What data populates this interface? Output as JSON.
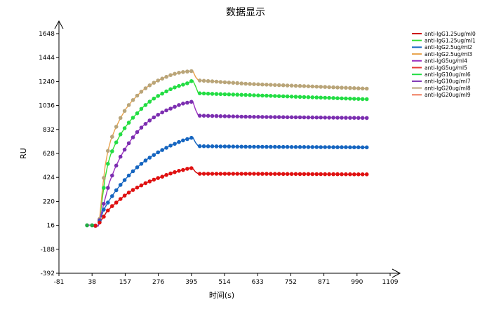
{
  "chart_data": {
    "type": "line",
    "title": "数据显示",
    "xlabel": "时间(s)",
    "ylabel": "RU",
    "xlim": [
      -81,
      1109
    ],
    "ylim": [
      -392,
      1648
    ],
    "x_ticks": [
      -81,
      38,
      157,
      276,
      395,
      514,
      633,
      752,
      871,
      990,
      1109
    ],
    "y_ticks": [
      -392,
      -188,
      16,
      220,
      424,
      628,
      832,
      1036,
      1240,
      1444,
      1648
    ],
    "grid": false,
    "legend_position": "top-right",
    "series": [
      {
        "name": "anti-IgG1.25ug/ml0",
        "color": "#cc0000",
        "markers": false,
        "x": [
          20,
          60,
          65,
          83,
          90,
          110,
          130,
          150,
          170,
          190,
          210,
          230,
          250,
          270,
          290,
          310,
          330,
          350,
          370,
          390,
          400,
          410,
          420,
          600,
          1020
        ],
        "y": [
          20,
          10,
          40,
          100,
          130,
          180,
          220,
          260,
          295,
          325,
          350,
          375,
          395,
          415,
          430,
          450,
          465,
          480,
          490,
          505,
          500,
          470,
          455,
          455,
          450
        ]
      },
      {
        "name": "anti-IgG1.25ug/ml1",
        "color": "#33dd33",
        "markers": false,
        "x": [
          20,
          60,
          65,
          75,
          85,
          95,
          105,
          120,
          140,
          160,
          180,
          200,
          220,
          240,
          260,
          280,
          300,
          320,
          340,
          360,
          380,
          400,
          410,
          420,
          600,
          1020
        ],
        "y": [
          20,
          10,
          60,
          250,
          420,
          540,
          620,
          700,
          790,
          860,
          920,
          970,
          1020,
          1060,
          1095,
          1125,
          1150,
          1175,
          1195,
          1210,
          1225,
          1250,
          1200,
          1140,
          1125,
          1090
        ]
      },
      {
        "name": "anti-IgG2.5ug/ml2",
        "color": "#1565c0",
        "markers": false,
        "x": [
          20,
          60,
          65,
          80,
          100,
          120,
          140,
          160,
          180,
          200,
          220,
          240,
          260,
          280,
          300,
          320,
          340,
          360,
          380,
          400,
          410,
          420,
          600,
          1020
        ],
        "y": [
          20,
          10,
          50,
          150,
          230,
          300,
          360,
          415,
          465,
          510,
          550,
          585,
          615,
          645,
          670,
          695,
          715,
          735,
          750,
          765,
          720,
          690,
          685,
          680
        ]
      },
      {
        "name": "anti-IgG2.5ug/ml3",
        "color": "#e8a24a",
        "markers": false,
        "x": [
          20,
          60,
          65,
          75,
          85,
          95,
          105,
          120,
          140,
          160,
          180,
          200,
          220,
          240,
          260,
          280,
          300,
          320,
          340,
          360,
          380,
          400,
          410,
          420,
          600,
          1020
        ],
        "y": [
          20,
          10,
          70,
          320,
          520,
          650,
          740,
          830,
          930,
          1010,
          1070,
          1120,
          1165,
          1200,
          1230,
          1255,
          1275,
          1295,
          1310,
          1320,
          1325,
          1330,
          1280,
          1250,
          1220,
          1180
        ]
      },
      {
        "name": "anti-IgG5ug/ml4",
        "color": "#9b30c0",
        "markers": false,
        "x": [
          20,
          60,
          65,
          80,
          100,
          120,
          140,
          160,
          180,
          200,
          220,
          240,
          260,
          280,
          300,
          320,
          340,
          360,
          380,
          400,
          410,
          420,
          600,
          1020
        ],
        "y": [
          20,
          10,
          60,
          200,
          380,
          500,
          600,
          680,
          750,
          810,
          860,
          900,
          935,
          965,
          990,
          1010,
          1030,
          1050,
          1060,
          1070,
          1000,
          950,
          940,
          930
        ]
      },
      {
        "name": "anti-IgG5ug/ml5",
        "color": "#e53935",
        "markers": true,
        "x": [
          20,
          47,
          65,
          80,
          95,
          110,
          125,
          140,
          155,
          170,
          185,
          200,
          215,
          230,
          245,
          260,
          275,
          290,
          305,
          320,
          335,
          350,
          365,
          380,
          395,
          425,
          440,
          455,
          470,
          485,
          500,
          515,
          530,
          545,
          560,
          575,
          590,
          605,
          620,
          635,
          650,
          665,
          680,
          695,
          710,
          725,
          740,
          755,
          770,
          785,
          800,
          815,
          830,
          845,
          860,
          875,
          890,
          905,
          920,
          935,
          950,
          965,
          980,
          995,
          1010,
          1025
        ],
        "y": [
          16,
          16,
          60,
          120,
          160,
          205,
          245,
          285,
          315,
          345,
          375,
          400,
          425,
          445,
          465,
          480,
          495,
          505,
          460,
          455,
          455,
          455,
          458,
          458,
          458,
          458,
          460,
          460,
          460,
          460,
          458,
          458,
          458,
          458,
          458,
          458,
          456,
          456,
          456,
          456,
          456,
          456,
          456,
          456,
          456,
          456,
          456,
          456,
          456,
          456,
          456,
          456,
          456,
          456,
          456,
          456,
          456,
          456,
          456,
          456,
          456,
          456,
          456,
          456,
          456,
          456
        ],
        "display_only": true
      },
      {
        "name": "anti-IgG10ug/ml6",
        "color": "#22dd44",
        "markers": true,
        "x": [],
        "y": []
      },
      {
        "name": "anti-IgG10ug/ml7",
        "color": "#7b2fb0",
        "markers": true,
        "x": [],
        "y": []
      },
      {
        "name": "anti-IgG20ug/ml8",
        "color": "#b8a57a",
        "markers": true,
        "x": [],
        "y": []
      },
      {
        "name": "anti-IgG20ug/ml9",
        "color": "#f07a5a",
        "markers": true,
        "x": [],
        "y": []
      }
    ]
  }
}
